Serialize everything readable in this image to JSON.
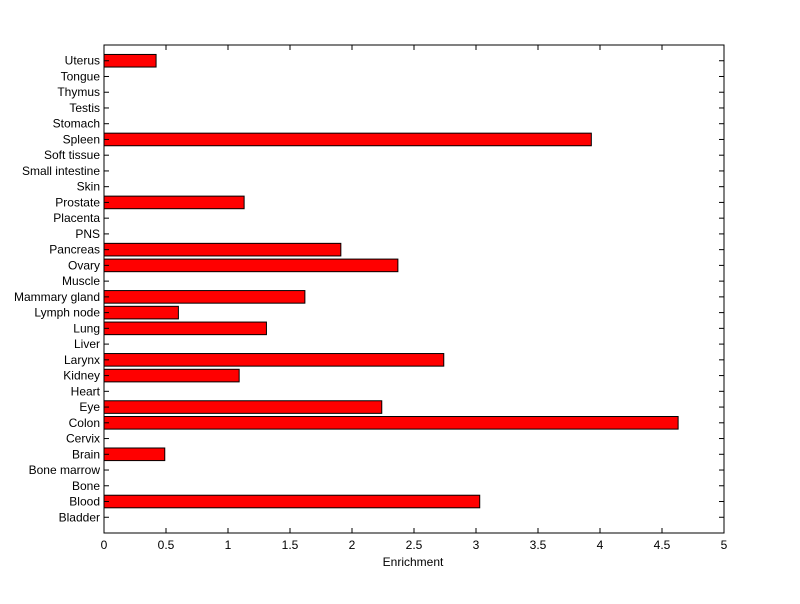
{
  "chart_data": {
    "type": "bar",
    "orientation": "horizontal",
    "title": "",
    "xlabel": "Enrichment",
    "ylabel": "",
    "xlim": [
      0,
      5
    ],
    "xticks": [
      0,
      0.5,
      1,
      1.5,
      2,
      2.5,
      3,
      3.5,
      4,
      4.5,
      5
    ],
    "xtick_labels": [
      "0",
      "0.5",
      "1",
      "1.5",
      "2",
      "2.5",
      "3",
      "3.5",
      "4",
      "4.5",
      "5"
    ],
    "grid": false,
    "legend": "none",
    "bar_color": "#ff0000",
    "bar_edge_color": "#000000",
    "categories": [
      "Bladder",
      "Blood",
      "Bone",
      "Bone marrow",
      "Brain",
      "Cervix",
      "Colon",
      "Eye",
      "Heart",
      "Kidney",
      "Larynx",
      "Liver",
      "Lung",
      "Lymph node",
      "Mammary gland",
      "Muscle",
      "Ovary",
      "Pancreas",
      "PNS",
      "Placenta",
      "Prostate",
      "Skin",
      "Small intestine",
      "Soft tissue",
      "Spleen",
      "Stomach",
      "Testis",
      "Thymus",
      "Tongue",
      "Uterus"
    ],
    "values": [
      0,
      3.03,
      0,
      0,
      0.49,
      0,
      4.63,
      2.24,
      0,
      1.09,
      2.74,
      0,
      1.31,
      0.6,
      1.62,
      0,
      2.37,
      1.91,
      0,
      0,
      1.13,
      0,
      0,
      0,
      3.93,
      0,
      0,
      0,
      0,
      0.42
    ]
  }
}
